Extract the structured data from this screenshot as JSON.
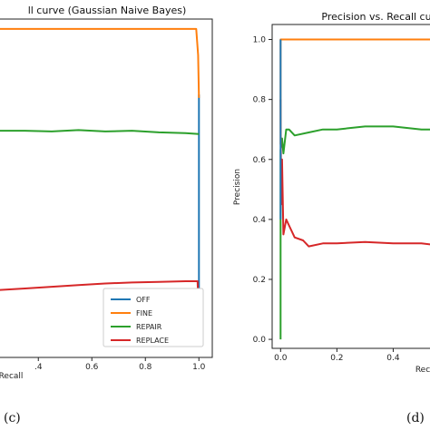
{
  "panel_labels": [
    "(c)",
    "(d)"
  ],
  "chart_data": [
    {
      "type": "line",
      "title": "ll curve (Gaussian Naive Bayes)",
      "xlabel": "Recall",
      "ylabel": "",
      "xlim": [
        0.25,
        1.05
      ],
      "ylim": [
        0.0,
        1.03
      ],
      "xticks": [
        0.4,
        0.6,
        0.8,
        1.0
      ],
      "xtick_labels": [
        ".4",
        "0.6",
        "0.8",
        "1.0"
      ],
      "yticks": [],
      "legend": "lower-right",
      "series": [
        {
          "name": "OFF",
          "color": "#1f77b4",
          "x": [
            1.0,
            1.0
          ],
          "y": [
            0.17,
            0.8
          ]
        },
        {
          "name": "FINE",
          "color": "#ff7f0e",
          "x": [
            0.25,
            0.4,
            0.6,
            0.8,
            0.99,
            0.997,
            1.0
          ],
          "y": [
            1.0,
            1.0,
            1.0,
            1.0,
            1.0,
            0.92,
            0.79
          ]
        },
        {
          "name": "REPAIR",
          "color": "#2ca02c",
          "x": [
            0.25,
            0.35,
            0.45,
            0.55,
            0.65,
            0.75,
            0.85,
            0.95,
            1.0
          ],
          "y": [
            0.69,
            0.69,
            0.688,
            0.692,
            0.688,
            0.69,
            0.685,
            0.683,
            0.68
          ]
        },
        {
          "name": "REPLACE",
          "color": "#d62728",
          "x": [
            0.25,
            0.35,
            0.45,
            0.55,
            0.65,
            0.75,
            0.85,
            0.95,
            0.995,
            0.998,
            1.0
          ],
          "y": [
            0.205,
            0.21,
            0.215,
            0.22,
            0.225,
            0.228,
            0.23,
            0.232,
            0.232,
            0.15,
            0.08
          ]
        }
      ]
    },
    {
      "type": "line",
      "title": "Precision vs. Recall cu",
      "xlabel": "Rec",
      "ylabel": "Precision",
      "xlim": [
        -0.03,
        0.55
      ],
      "ylim": [
        -0.03,
        1.05
      ],
      "xticks": [
        0.0,
        0.2,
        0.4
      ],
      "xtick_labels": [
        "0.0",
        "0.2",
        "0.4"
      ],
      "yticks": [
        0.0,
        0.2,
        0.4,
        0.6,
        0.8,
        1.0
      ],
      "ytick_labels": [
        "0.0",
        "0.2",
        "0.4",
        "0.6",
        "0.8",
        "1.0"
      ],
      "series": [
        {
          "name": "",
          "color": "#2ca02c",
          "x": [
            0.0,
            0.0,
            0.005,
            0.01,
            0.02,
            0.03,
            0.05,
            0.1,
            0.15,
            0.2,
            0.3,
            0.4,
            0.5,
            0.55
          ],
          "y": [
            0.0,
            0.63,
            0.67,
            0.62,
            0.7,
            0.7,
            0.68,
            0.69,
            0.7,
            0.7,
            0.71,
            0.71,
            0.7,
            0.7
          ]
        },
        {
          "name": "",
          "color": "#d62728",
          "x": [
            0.0,
            0.002,
            0.005,
            0.01,
            0.02,
            0.03,
            0.05,
            0.08,
            0.1,
            0.15,
            0.2,
            0.3,
            0.4,
            0.5,
            0.55
          ],
          "y": [
            0.8,
            0.45,
            0.6,
            0.35,
            0.4,
            0.38,
            0.34,
            0.33,
            0.31,
            0.32,
            0.32,
            0.325,
            0.32,
            0.32,
            0.315
          ]
        },
        {
          "name": "",
          "color": "#ff7f0e",
          "x": [
            0.0,
            0.0,
            0.002,
            0.55
          ],
          "y": [
            0.65,
            1.0,
            1.0,
            1.0
          ]
        },
        {
          "name": "",
          "color": "#1f77b4",
          "x": [
            0.0,
            0.0
          ],
          "y": [
            0.4,
            1.0
          ]
        }
      ]
    }
  ]
}
